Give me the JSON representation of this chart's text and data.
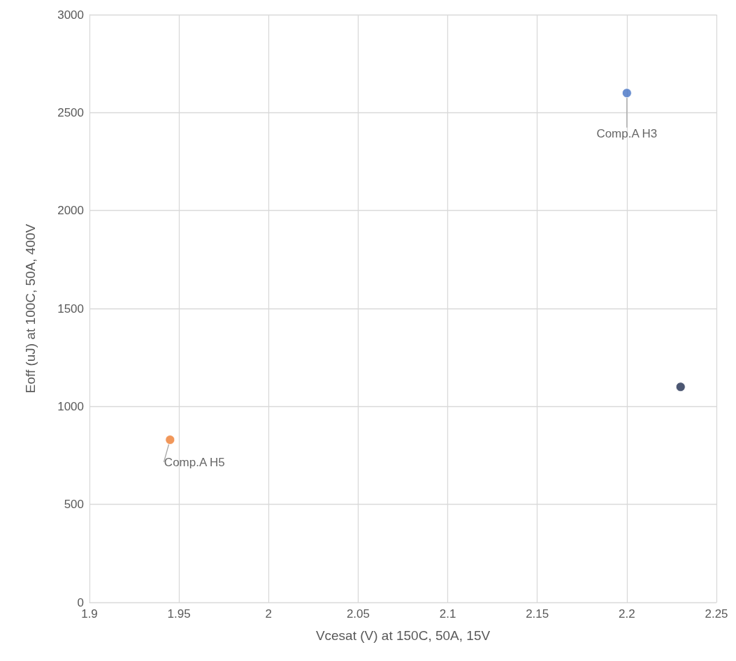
{
  "chart_data": {
    "type": "scatter",
    "xlabel": "Vcesat (V) at 150C, 50A, 15V",
    "ylabel": "Eoff (uJ) at 100C, 50A, 400V",
    "series": [
      {
        "name": "Comp.A H3",
        "color": "#4472c4",
        "x": [
          2.2
        ],
        "values": [
          2600
        ]
      },
      {
        "name": "Comp.A H5",
        "color": "#ed7d31",
        "x": [
          1.945
        ],
        "values": [
          830
        ]
      },
      {
        "color": "#1f2d4f",
        "x": [
          2.23
        ],
        "values": [
          1100
        ]
      }
    ],
    "xlim": [
      1.9,
      2.25
    ],
    "xticks": [
      1.9,
      1.95,
      2,
      2.05,
      2.1,
      2.15,
      2.2,
      2.25
    ],
    "ylim": [
      0,
      3000
    ],
    "yticks": [
      0,
      500,
      1000,
      1500,
      2000,
      2500,
      3000
    ],
    "grid": true,
    "legend": false,
    "marker": "circle"
  }
}
